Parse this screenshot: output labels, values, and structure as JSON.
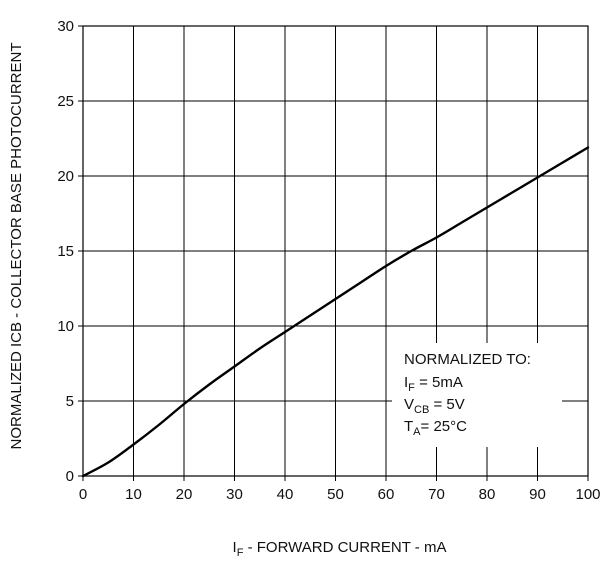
{
  "chart_data": {
    "type": "line",
    "title": "",
    "xlabel": {
      "main": "I",
      "sub": "F",
      "rest": " - FORWARD CURRENT - mA"
    },
    "ylabel": "NORMALIZED ICB - COLLECTOR BASE PHOTOCURRENT",
    "xlim": [
      0,
      100
    ],
    "ylim": [
      0,
      30
    ],
    "x_ticks": [
      "0",
      "10",
      "20",
      "30",
      "40",
      "50",
      "60",
      "70",
      "80",
      "90",
      "100"
    ],
    "y_ticks": [
      "0",
      "5",
      "10",
      "15",
      "20",
      "25",
      "30"
    ],
    "grid": true,
    "legend": "none",
    "series": [
      {
        "color": "#000000",
        "x": [
          0,
          5,
          10,
          15,
          20,
          25,
          30,
          35,
          40,
          45,
          50,
          55,
          60,
          65,
          70,
          75,
          80,
          85,
          90,
          95,
          100
        ],
        "y": [
          0,
          0.9,
          2.1,
          3.4,
          4.8,
          6.1,
          7.3,
          8.5,
          9.6,
          10.7,
          11.8,
          12.9,
          14.0,
          15.0,
          15.9,
          16.9,
          17.9,
          18.9,
          19.9,
          20.9,
          21.9
        ]
      }
    ],
    "annotation": {
      "heading": "NORMALIZED TO:",
      "lines": [
        {
          "main": "I",
          "sub": "F",
          "rest": " = 5mA"
        },
        {
          "main": "V",
          "sub": "CB",
          "rest": " = 5V"
        },
        {
          "main": "T",
          "sub": "A",
          "rest": "= 25°C"
        }
      ]
    }
  }
}
